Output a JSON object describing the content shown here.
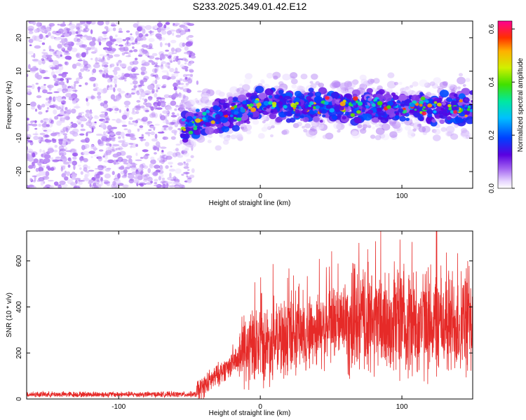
{
  "title": "S233.2025.349.01.42.E12",
  "colors": {
    "snr_line": "#e62a28",
    "background_noise": "#7b3be0",
    "track_core": "#00e0ff",
    "frame": "#000000"
  },
  "chart_data": [
    {
      "type": "heatmap",
      "name": "spectrogram",
      "xlabel": "Height of straight line (km)",
      "ylabel": "Frequency (Hz)",
      "xlim": [
        -165,
        150
      ],
      "ylim": [
        -25,
        25
      ],
      "xticks": [
        -100,
        0,
        100
      ],
      "yticks": [
        -20,
        -10,
        0,
        10,
        20
      ],
      "colorbar": {
        "label": "Normalized spectral amplitude",
        "range": [
          0.0,
          0.63
        ],
        "ticks": [
          "0.0",
          "0.2",
          "0.4",
          "0.6"
        ],
        "tick_values": [
          0.0,
          0.2,
          0.4,
          0.6
        ],
        "colormap": "rainbow (purple-blue-cyan-green-yellow-orange-red-magenta)"
      },
      "regions": [
        {
          "description": "noise",
          "x_range": [
            -165,
            -48
          ],
          "freq_range": [
            -25,
            25
          ],
          "amplitude_range": [
            0.02,
            0.08
          ]
        },
        {
          "description": "signal track",
          "x_range": [
            -55,
            150
          ],
          "freq_center_start": -7,
          "freq_center_mid": 0,
          "freq_center_end": -1,
          "freq_halfwidth": 5,
          "amplitude_range": [
            0.05,
            0.6
          ]
        }
      ]
    },
    {
      "type": "line",
      "name": "snr",
      "xlabel": "Height of straight line (km)",
      "ylabel": "SNR (10 * v/v)",
      "xlim": [
        -165,
        150
      ],
      "ylim": [
        0,
        730
      ],
      "xticks": [
        -100,
        0,
        100
      ],
      "yticks": [
        0,
        200,
        400,
        600
      ],
      "series": [
        {
          "name": "SNR",
          "x_range": [
            -165,
            150
          ],
          "segments": [
            {
              "x": [
                -165,
                -45
              ],
              "baseline": 20,
              "noise_amplitude": 15
            },
            {
              "x": [
                -45,
                -15
              ],
              "baseline_start": 30,
              "baseline_end": 180,
              "noise_amplitude": 60
            },
            {
              "x": [
                -15,
                60
              ],
              "baseline_start": 200,
              "baseline_end": 340,
              "noise_amplitude": 200
            },
            {
              "x": [
                60,
                150
              ],
              "baseline": 330,
              "noise_amplitude": 280
            }
          ],
          "peak_max": 730
        }
      ]
    }
  ]
}
